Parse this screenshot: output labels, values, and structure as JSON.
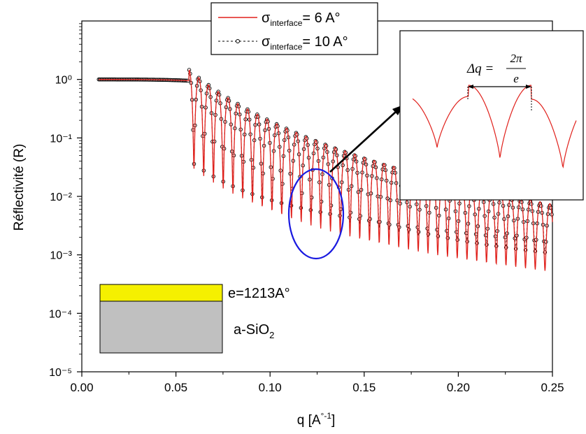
{
  "chart_data": {
    "type": "line",
    "xlabel": "q [A°-1]",
    "ylabel": "Réflectivité (R)",
    "x_ticks": [
      "0.00",
      "0.05",
      "0.10",
      "0.15",
      "0.20",
      "0.25"
    ],
    "x_tick_values": [
      0.0,
      0.05,
      0.1,
      0.15,
      0.2,
      0.25
    ],
    "y_ticks": [
      "10⁰",
      "10⁻¹",
      "10⁻²",
      "10⁻³",
      "10⁻⁴",
      "10⁻⁵"
    ],
    "y_tick_exponents": [
      0,
      -1,
      -2,
      -3,
      -4,
      -5
    ],
    "xlim": [
      0.0,
      0.25
    ],
    "ylim": [
      1e-05,
      10
    ],
    "y_scale": "log",
    "legend_position": "top-center",
    "series": [
      {
        "name": "σinterface = 6 A°",
        "color": "#e0201b",
        "style": "solid",
        "roughness": 6
      },
      {
        "name": "σinterface = 10 A°",
        "color": "#000000",
        "style": "dashed-circles",
        "roughness": 10
      }
    ],
    "model": {
      "x_start": 0.009,
      "x_end": 0.25,
      "critical_q": 0.057,
      "thickness_A": 1213
    },
    "annotations": {
      "thickness_label": "e=1213A°",
      "substrate_label": "a-SiO2",
      "inset_formula": "Δq = 2π / e"
    }
  },
  "legend": {
    "series1_prefix": "σ",
    "series1_sub": "interface",
    "series1_value": "= 6 A°",
    "series2_prefix": "σ",
    "series2_sub": "interface",
    "series2_value": "= 10 A°"
  },
  "axis_text": {
    "x_label_main": "q [A",
    "x_label_sup": "°-1",
    "x_label_end": "]",
    "y_label": "Réflectivité (R)"
  },
  "inset": {
    "delta_q": "Δq =",
    "numerator": "2π",
    "denominator": "e"
  },
  "sample": {
    "film_label": "e=1213A°",
    "substrate_main": "a-SiO",
    "substrate_sub": "2"
  },
  "colors": {
    "film": "#f5f000",
    "substrate": "#c0c0c0",
    "highlight_ellipse": "#1a1ae0",
    "red_curve": "#e0201b"
  }
}
